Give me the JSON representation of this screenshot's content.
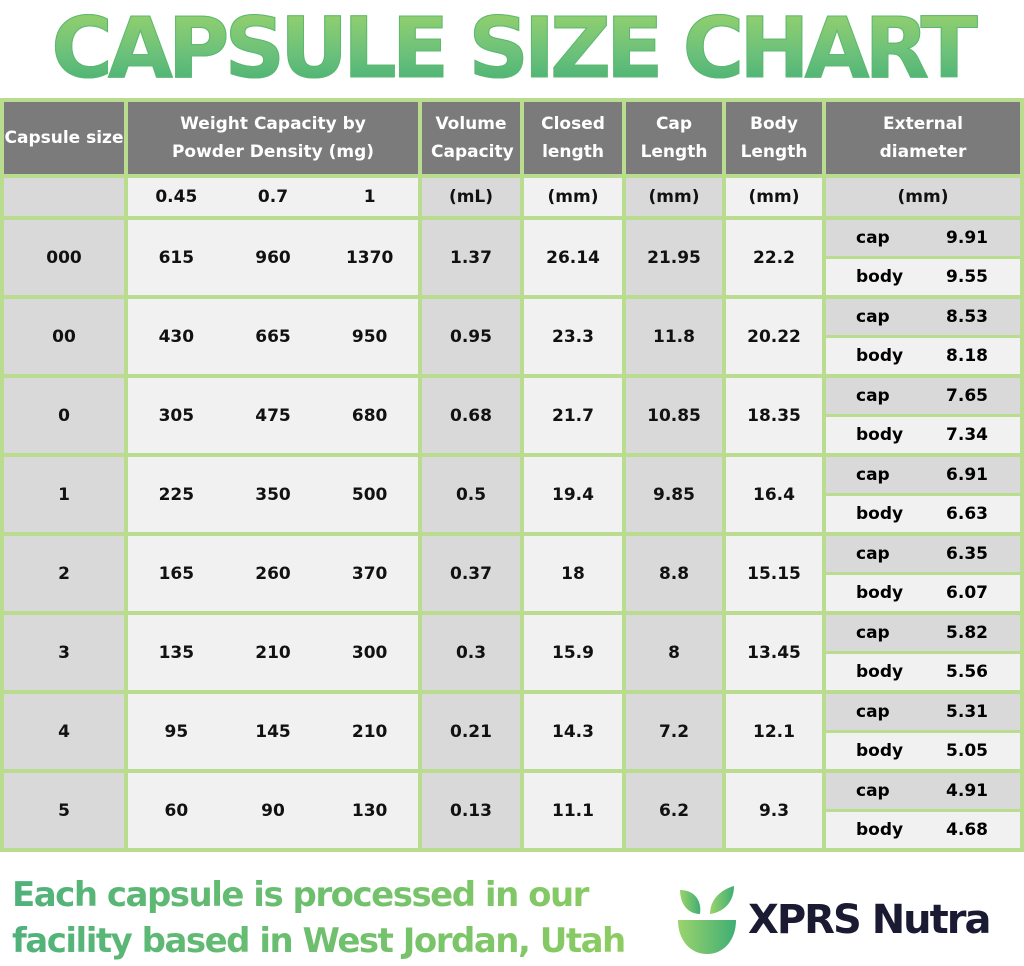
{
  "title": "CAPSULE SIZE CHART",
  "headers": {
    "size": "Capsule size",
    "weight": "Weight Capacity by Powder Density (mg)",
    "volume": "Volume Capacity",
    "closed": "Closed length",
    "cap": "Cap Length",
    "body": "Body Length",
    "ext": "External diameter"
  },
  "units": {
    "size": "",
    "densities": [
      "0.45",
      "0.7",
      "1"
    ],
    "volume": "(mL)",
    "closed": "(mm)",
    "cap": "(mm)",
    "body": "(mm)",
    "ext": "(mm)"
  },
  "sub_labels": {
    "cap": "cap",
    "body": "body"
  },
  "rows": [
    {
      "size": "000",
      "w": [
        "615",
        "960",
        "1370"
      ],
      "vol": "1.37",
      "closed": "26.14",
      "cap": "21.95",
      "body": "22.2",
      "ext_cap": "9.91",
      "ext_body": "9.55"
    },
    {
      "size": "00",
      "w": [
        "430",
        "665",
        "950"
      ],
      "vol": "0.95",
      "closed": "23.3",
      "cap": "11.8",
      "body": "20.22",
      "ext_cap": "8.53",
      "ext_body": "8.18"
    },
    {
      "size": "0",
      "w": [
        "305",
        "475",
        "680"
      ],
      "vol": "0.68",
      "closed": "21.7",
      "cap": "10.85",
      "body": "18.35",
      "ext_cap": "7.65",
      "ext_body": "7.34"
    },
    {
      "size": "1",
      "w": [
        "225",
        "350",
        "500"
      ],
      "vol": "0.5",
      "closed": "19.4",
      "cap": "9.85",
      "body": "16.4",
      "ext_cap": "6.91",
      "ext_body": "6.63"
    },
    {
      "size": "2",
      "w": [
        "165",
        "260",
        "370"
      ],
      "vol": "0.37",
      "closed": "18",
      "cap": "8.8",
      "body": "15.15",
      "ext_cap": "6.35",
      "ext_body": "6.07"
    },
    {
      "size": "3",
      "w": [
        "135",
        "210",
        "300"
      ],
      "vol": "0.3",
      "closed": "15.9",
      "cap": "8",
      "body": "13.45",
      "ext_cap": "5.82",
      "ext_body": "5.56"
    },
    {
      "size": "4",
      "w": [
        "95",
        "145",
        "210"
      ],
      "vol": "0.21",
      "closed": "14.3",
      "cap": "7.2",
      "body": "12.1",
      "ext_cap": "5.31",
      "ext_body": "5.05"
    },
    {
      "size": "5",
      "w": [
        "60",
        "90",
        "130"
      ],
      "vol": "0.13",
      "closed": "11.1",
      "cap": "6.2",
      "body": "9.3",
      "ext_cap": "4.91",
      "ext_body": "4.68"
    }
  ],
  "footer": {
    "line1": "Each capsule is processed in our",
    "line2": "facility based in West Jordan, Utah"
  },
  "brand": "XPRS Nutra",
  "colors": {
    "header": "#7b7b7b",
    "border": "#b9dc8e",
    "cell_dark": "#d9d9d9",
    "cell_light": "#f1f1f1",
    "brand_text": "#1b1a33"
  }
}
